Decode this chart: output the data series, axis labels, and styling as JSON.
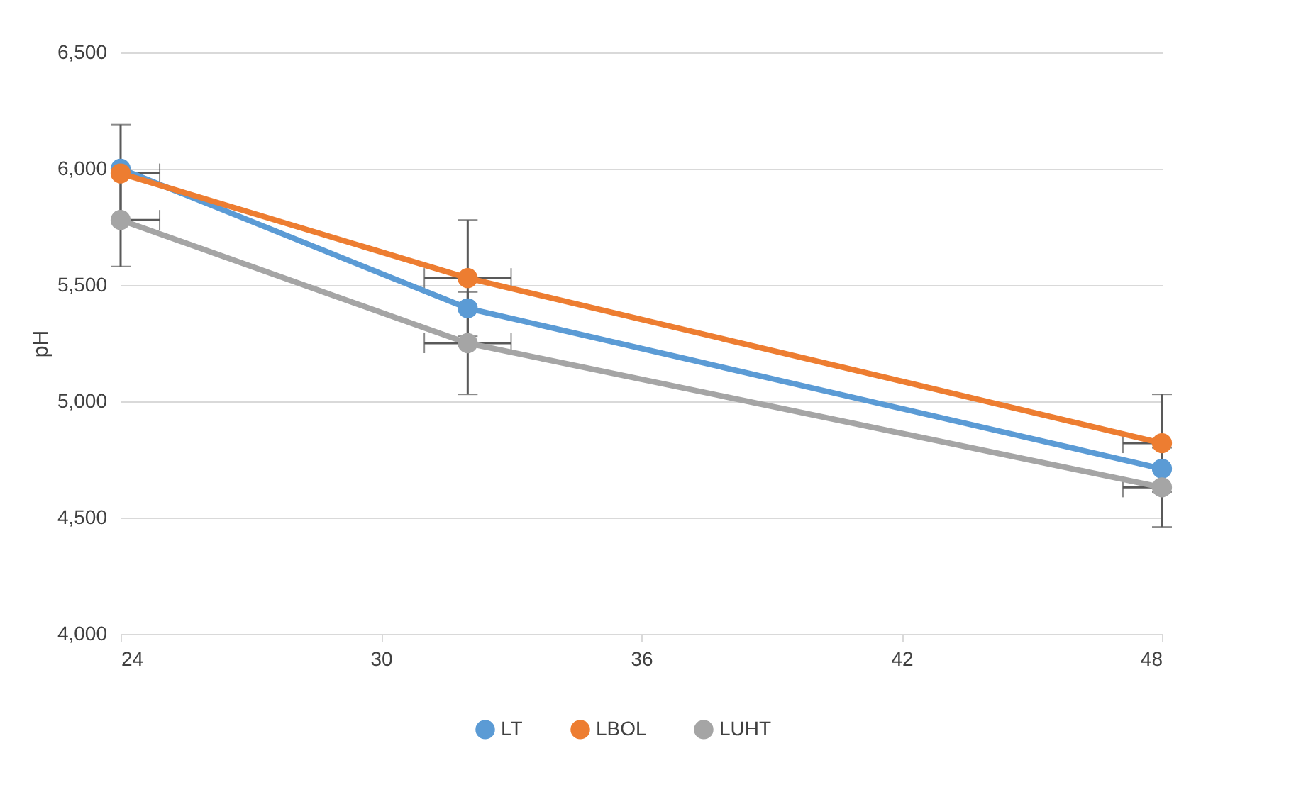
{
  "chart_data": {
    "type": "line",
    "ylabel": "pH",
    "x": [
      24,
      32,
      48
    ],
    "series": [
      {
        "name": "LT",
        "color": "#5b9bd5",
        "values": [
          6000,
          5400,
          4710
        ]
      },
      {
        "name": "LBOL",
        "color": "#ed7d31",
        "values": [
          5980,
          5530,
          4820
        ],
        "errors": [
          210,
          250,
          210
        ],
        "xerrors": [
          [
            24,
            24.9
          ],
          [
            31,
            33
          ],
          [
            47.1,
            48
          ]
        ]
      },
      {
        "name": "LUHT",
        "color": "#a5a5a5",
        "values": [
          5780,
          5250,
          4630
        ],
        "errors": [
          200,
          220,
          170
        ],
        "xerrors": [
          [
            24,
            24.9
          ],
          [
            31,
            33
          ],
          [
            47.1,
            48
          ]
        ]
      }
    ],
    "xlim": [
      24,
      48
    ],
    "xticks": [
      24,
      30,
      36,
      42,
      48
    ],
    "ylim": [
      4000,
      6500
    ],
    "yticks": [
      {
        "value": 4000,
        "label": "4,000"
      },
      {
        "value": 4500,
        "label": "4,500"
      },
      {
        "value": 5000,
        "label": "5,000"
      },
      {
        "value": 5500,
        "label": "5,500"
      },
      {
        "value": 6000,
        "label": "6,000"
      },
      {
        "value": 6500,
        "label": "6,500"
      }
    ],
    "grid": "y",
    "legend": "bottom",
    "marker": "circle",
    "line_style": "solid"
  }
}
